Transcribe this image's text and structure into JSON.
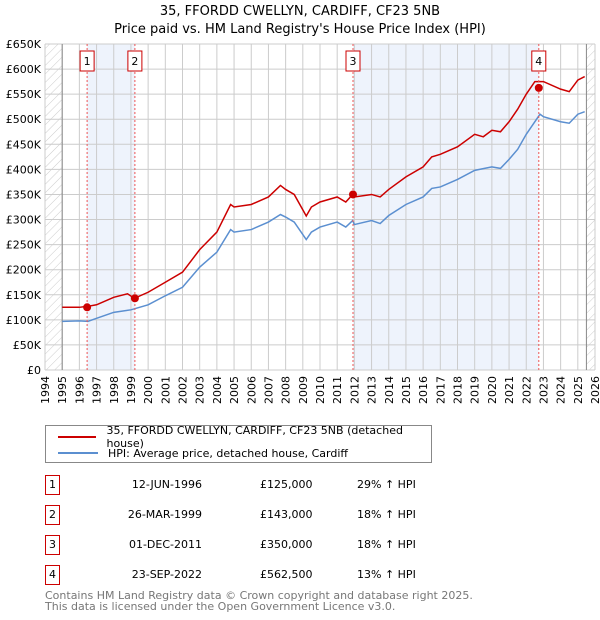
{
  "title_line1": "35, FFORDD CWELLYN, CARDIFF, CF23 5NB",
  "title_line2": "Price paid vs. HM Land Registry's House Price Index (HPI)",
  "chart_data": {
    "type": "line",
    "title": "35, FFORDD CWELLYN, CARDIFF, CF23 5NB — Price paid vs. HM Land Registry's House Price Index (HPI)",
    "xlim": [
      1994,
      2026
    ],
    "ylim": [
      0,
      650000
    ],
    "x_ticks": [
      "1994",
      "1995",
      "1996",
      "1997",
      "1998",
      "1999",
      "2000",
      "2001",
      "2002",
      "2003",
      "2004",
      "2005",
      "2006",
      "2007",
      "2008",
      "2009",
      "2010",
      "2011",
      "2012",
      "2013",
      "2014",
      "2015",
      "2016",
      "2017",
      "2018",
      "2019",
      "2020",
      "2021",
      "2022",
      "2023",
      "2024",
      "2025",
      "2026"
    ],
    "y_ticks": [
      {
        "v": 0,
        "l": "£0"
      },
      {
        "v": 50000,
        "l": "£50K"
      },
      {
        "v": 100000,
        "l": "£100K"
      },
      {
        "v": 150000,
        "l": "£150K"
      },
      {
        "v": 200000,
        "l": "£200K"
      },
      {
        "v": 250000,
        "l": "£250K"
      },
      {
        "v": 300000,
        "l": "£300K"
      },
      {
        "v": 350000,
        "l": "£350K"
      },
      {
        "v": 400000,
        "l": "£400K"
      },
      {
        "v": 450000,
        "l": "£450K"
      },
      {
        "v": 500000,
        "l": "£500K"
      },
      {
        "v": 550000,
        "l": "£550K"
      },
      {
        "v": 600000,
        "l": "£600K"
      },
      {
        "v": 650000,
        "l": "£650K"
      }
    ],
    "series": [
      {
        "name": "35, FFORDD CWELLYN, CARDIFF, CF23 5NB (detached house)",
        "color": "#cc0000",
        "x": [
          1995,
          1996,
          1996.5,
          1997,
          1998,
          1998.8,
          1999.2,
          2000,
          2001,
          2002,
          2003,
          2004,
          2004.8,
          2005,
          2006,
          2007,
          2007.7,
          2008,
          2008.5,
          2009.2,
          2009.5,
          2010,
          2011,
          2011.5,
          2011.9,
          2012,
          2013,
          2013.5,
          2014,
          2015,
          2016,
          2016.5,
          2017,
          2018,
          2019,
          2019.5,
          2020,
          2020.5,
          2021,
          2021.5,
          2022,
          2022.5,
          2023,
          2024,
          2024.5,
          2025,
          2025.4
        ],
        "y": [
          125000,
          125000,
          127000,
          130000,
          145000,
          152000,
          143000,
          155000,
          175000,
          195000,
          240000,
          275000,
          330000,
          325000,
          330000,
          345000,
          368000,
          360000,
          350000,
          307000,
          325000,
          335000,
          345000,
          335000,
          350000,
          345000,
          350000,
          345000,
          360000,
          385000,
          405000,
          425000,
          430000,
          445000,
          470000,
          465000,
          478000,
          475000,
          495000,
          520000,
          550000,
          575000,
          575000,
          560000,
          555000,
          578000,
          585000
        ]
      },
      {
        "name": "HPI: Average price, detached house, Cardiff",
        "color": "#5b8fd0",
        "x": [
          1995,
          1996,
          1996.5,
          1997,
          1998,
          1999,
          2000,
          2001,
          2002,
          2003,
          2004,
          2004.8,
          2005,
          2006,
          2007,
          2007.7,
          2008,
          2008.5,
          2009.2,
          2009.5,
          2010,
          2011,
          2011.5,
          2011.9,
          2012,
          2013,
          2013.5,
          2014,
          2015,
          2016,
          2016.5,
          2017,
          2018,
          2019,
          2020,
          2020.5,
          2021,
          2021.5,
          2022,
          2022.8,
          2023,
          2024,
          2024.5,
          2025,
          2025.4
        ],
        "y": [
          97000,
          98000,
          97000,
          103000,
          115000,
          120000,
          130000,
          148000,
          165000,
          205000,
          235000,
          280000,
          275000,
          280000,
          295000,
          310000,
          305000,
          295000,
          260000,
          275000,
          285000,
          295000,
          285000,
          298000,
          290000,
          298000,
          292000,
          308000,
          330000,
          345000,
          362000,
          365000,
          380000,
          398000,
          405000,
          402000,
          420000,
          440000,
          470000,
          510000,
          505000,
          495000,
          492000,
          510000,
          515000
        ]
      }
    ],
    "sales": [
      {
        "n": "1",
        "x": 1996.45,
        "y": 125000
      },
      {
        "n": "2",
        "x": 1999.23,
        "y": 143000
      },
      {
        "n": "3",
        "x": 2011.92,
        "y": 350000
      },
      {
        "n": "4",
        "x": 2022.73,
        "y": 562500
      }
    ],
    "shaded": [
      [
        1996.45,
        1999.23
      ],
      [
        2011.92,
        2022.73
      ]
    ],
    "legend_position": "below"
  },
  "legend": {
    "property": "35, FFORDD CWELLYN, CARDIFF, CF23 5NB (detached house)",
    "hpi": "HPI: Average price, detached house, Cardiff"
  },
  "transactions": [
    {
      "n": "1",
      "date": "12-JUN-1996",
      "price": "£125,000",
      "hpi": "29% ↑ HPI"
    },
    {
      "n": "2",
      "date": "26-MAR-1999",
      "price": "£143,000",
      "hpi": "18% ↑ HPI"
    },
    {
      "n": "3",
      "date": "01-DEC-2011",
      "price": "£350,000",
      "hpi": "18% ↑ HPI"
    },
    {
      "n": "4",
      "date": "23-SEP-2022",
      "price": "£562,500",
      "hpi": "13% ↑ HPI"
    }
  ],
  "footer1": "Contains HM Land Registry data © Crown copyright and database right 2025.",
  "footer2": "This data is licensed under the Open Government Licence v3.0."
}
